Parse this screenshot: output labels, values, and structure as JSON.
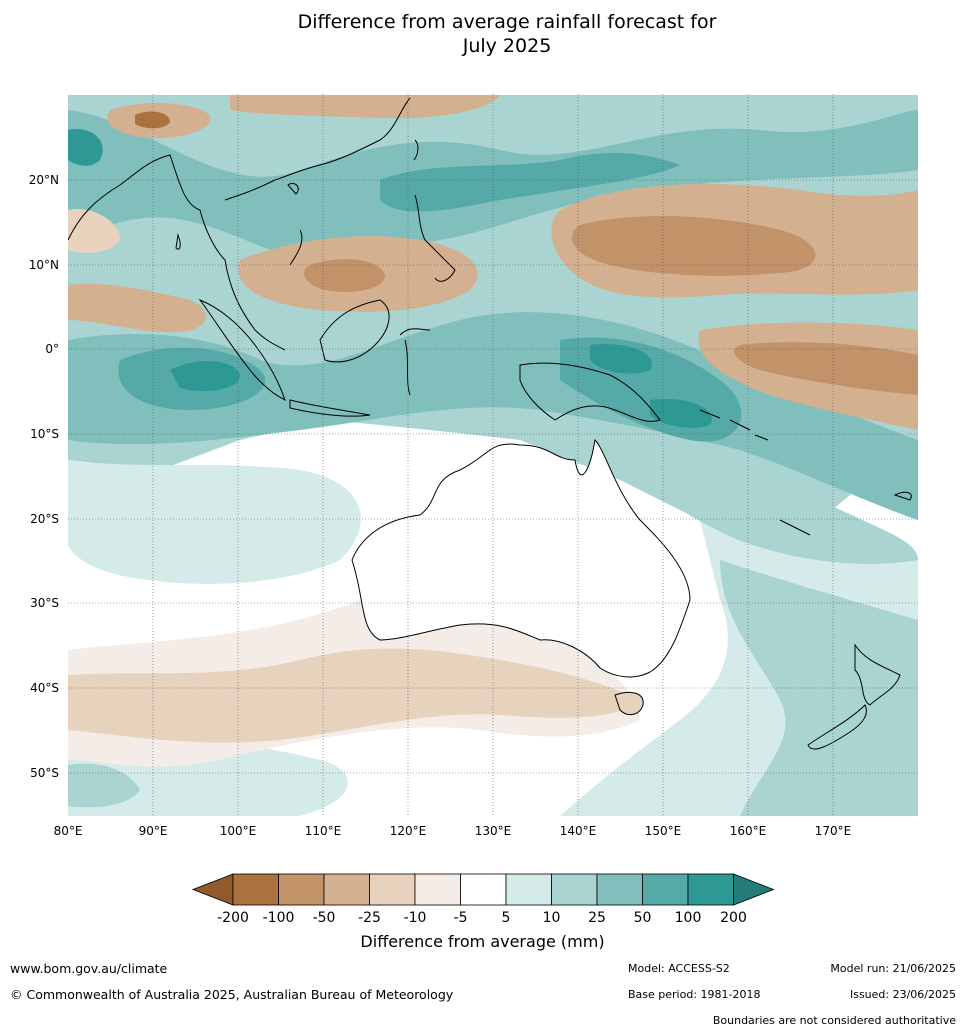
{
  "title_line1": "Difference from average rainfall forecast for",
  "title_line2": "July 2025",
  "map": {
    "lat_labels": [
      "20°N",
      "10°N",
      "0°",
      "10°S",
      "20°S",
      "30°S",
      "40°S",
      "50°S"
    ],
    "lon_labels": [
      "80°E",
      "90°E",
      "100°E",
      "110°E",
      "120°E",
      "130°E",
      "140°E",
      "150°E",
      "160°E",
      "170°E"
    ]
  },
  "colorbar": {
    "tick_labels": [
      "-200",
      "-100",
      "-50",
      "-25",
      "-10",
      "-5",
      "5",
      "10",
      "25",
      "50",
      "100",
      "200"
    ],
    "colors": [
      "#8f5a2c",
      "#ab713f",
      "#c29269",
      "#d3b08f",
      "#e6d2bd",
      "#f4ece6",
      "#ffffff",
      "#d5ebe9",
      "#aad4d2",
      "#80bfbc",
      "#55aaa7",
      "#2e9894",
      "#237c79"
    ],
    "label": "Difference from average (mm)"
  },
  "footer": {
    "url": "www.bom.gov.au/climate",
    "copyright": "© Commonwealth of Australia 2025, Australian Bureau of Meteorology",
    "model": "Model: ACCESS-S2",
    "base_period": "Base period: 1981-2018",
    "model_run": "Model run: 21/06/2025",
    "issued": "Issued: 23/06/2025",
    "disclaimer": "Boundaries are not considered authoritative"
  }
}
